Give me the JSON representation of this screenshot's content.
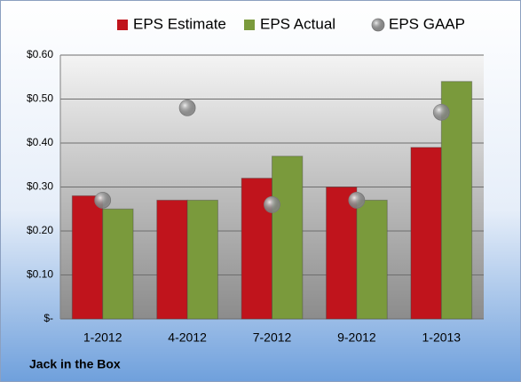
{
  "chart_data": {
    "type": "bar",
    "title": "Jack in the Box",
    "categories": [
      "1-2012",
      "4-2012",
      "7-2012",
      "9-2012",
      "1-2013"
    ],
    "series": [
      {
        "name": "EPS Estimate",
        "color": "#c0141c",
        "values": [
          0.28,
          0.27,
          0.32,
          0.3,
          0.39
        ]
      },
      {
        "name": "EPS Actual",
        "color": "#7a9a3c",
        "values": [
          0.25,
          0.27,
          0.37,
          0.27,
          0.54
        ]
      },
      {
        "name": "EPS GAAP",
        "type": "scatter",
        "color": "#a6a6a6",
        "values": [
          0.27,
          0.48,
          0.26,
          0.27,
          0.47
        ]
      }
    ],
    "ylim": [
      0,
      0.6
    ],
    "yticks": [
      {
        "value": 0,
        "label": "$-"
      },
      {
        "value": 0.1,
        "label": "$0.10"
      },
      {
        "value": 0.2,
        "label": "$0.20"
      },
      {
        "value": 0.3,
        "label": "$0.30"
      },
      {
        "value": 0.4,
        "label": "$0.40"
      },
      {
        "value": 0.5,
        "label": "$0.50"
      },
      {
        "value": 0.6,
        "label": "$0.60"
      }
    ],
    "grid": true,
    "legend": "top"
  }
}
